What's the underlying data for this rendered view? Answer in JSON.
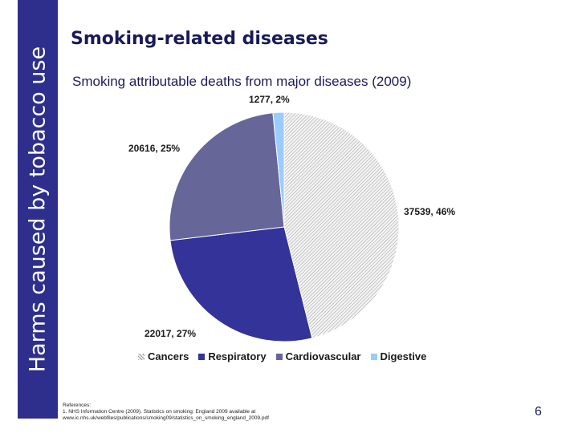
{
  "sidebar": {
    "text": "Harms caused by tobacco use"
  },
  "title": "Smoking-related diseases",
  "chart_data": {
    "type": "pie",
    "title": "Smoking attributable deaths from major diseases (2009)",
    "legend_position": "bottom",
    "slices": [
      {
        "name": "Cancers",
        "value": 37539,
        "percent": 46,
        "label": "37539, 46%",
        "color": "#e8e8e8"
      },
      {
        "name": "Respiratory",
        "value": 22017,
        "percent": 27,
        "label": "22017, 27%",
        "color": "#333399"
      },
      {
        "name": "Cardiovascular",
        "value": 20616,
        "percent": 25,
        "label": "20616, 25%",
        "color": "#666699"
      },
      {
        "name": "Digestive",
        "value": 1277,
        "percent": 2,
        "label": "1277, 2%",
        "color": "#99ccff"
      }
    ]
  },
  "references": {
    "heading": "References:",
    "line1": "1. NHS Information Centre (2009). Statistics on smoking: England 2009 available at",
    "line2": "www.ic.nhs.uk/webfiles/publications/smoking09/statistics_on_smoking_england_2009.pdf"
  },
  "page_number": "6"
}
